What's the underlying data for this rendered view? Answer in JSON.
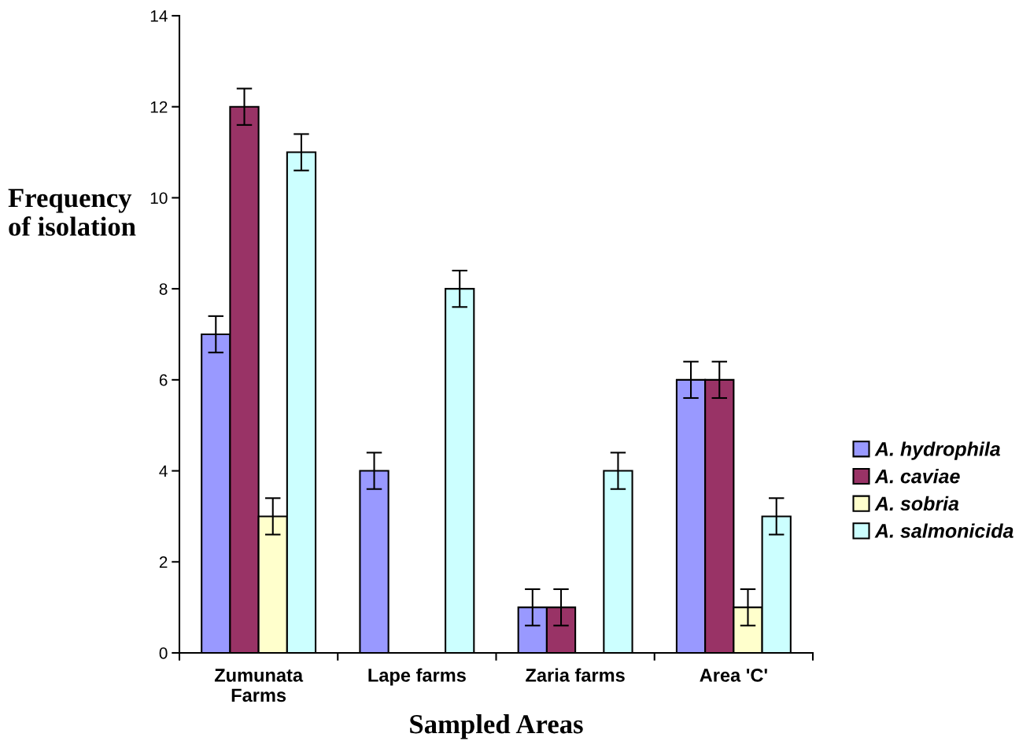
{
  "chart_data": {
    "type": "bar",
    "xlabel": "Sampled Areas",
    "ylabel": "Frequency\nof isolation",
    "categories": [
      "Zumunata\nFarms",
      "Lape farms",
      "Zaria farms",
      "Area 'C'"
    ],
    "series": [
      {
        "name": "A. hydrophila",
        "color": "#9999ff",
        "values": [
          7,
          4,
          1,
          6
        ],
        "errors": [
          0.4,
          0.4,
          0.4,
          0.4
        ]
      },
      {
        "name": "A. caviae",
        "color": "#993366",
        "values": [
          12,
          null,
          1,
          6
        ],
        "errors": [
          0.4,
          null,
          0.4,
          0.4
        ]
      },
      {
        "name": "A. sobria",
        "color": "#ffffcc",
        "values": [
          3,
          null,
          null,
          1
        ],
        "errors": [
          0.4,
          null,
          null,
          0.4
        ]
      },
      {
        "name": "A. salmonicida",
        "color": "#ccffff",
        "values": [
          11,
          8,
          4,
          3
        ],
        "errors": [
          0.4,
          0.4,
          0.4,
          0.4
        ]
      }
    ],
    "ylim": [
      0,
      14
    ],
    "yticks": [
      0,
      2,
      4,
      6,
      8,
      10,
      12,
      14
    ],
    "grid": false,
    "legend": "right"
  }
}
